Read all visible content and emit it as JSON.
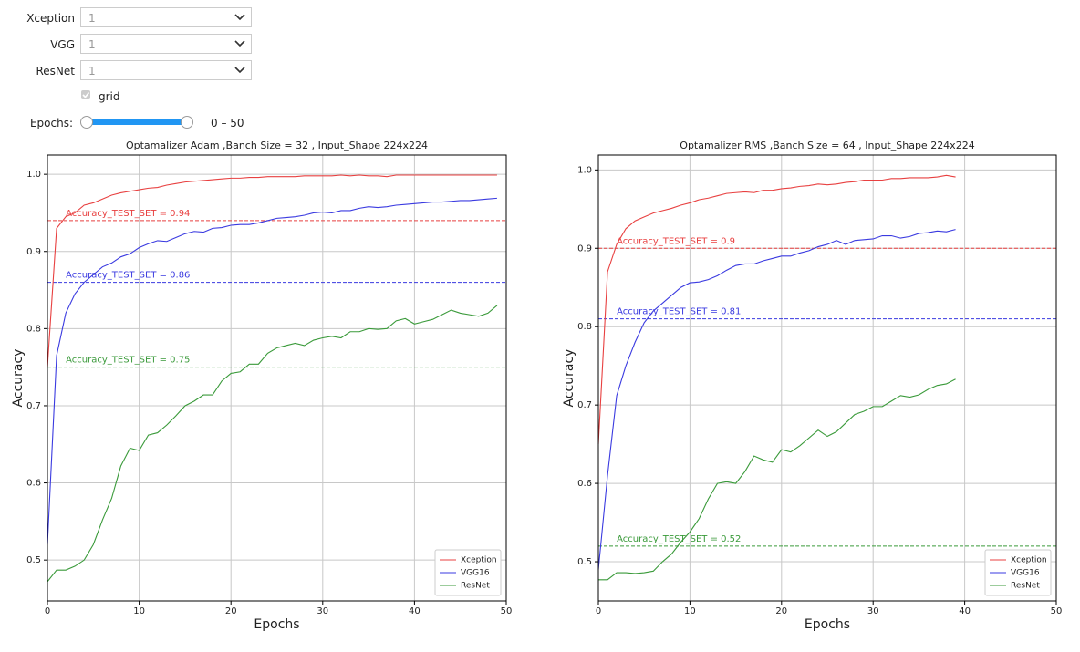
{
  "widgets": {
    "dropdowns": [
      {
        "label": "Xception",
        "value": "1"
      },
      {
        "label": "VGG",
        "value": "1"
      },
      {
        "label": "ResNet",
        "value": "1"
      }
    ],
    "checkbox": {
      "label": "grid"
    },
    "slider": {
      "label": "Epochs:",
      "readout": "0 – 50"
    }
  },
  "chart_data": [
    {
      "type": "line",
      "title": "Optamalizer Adam ,Banch Size = 32 , Input_Shape 224x224",
      "x_label": "Epochs",
      "y_label": "Accuracy",
      "x": [
        0,
        1,
        2,
        3,
        4,
        5,
        6,
        7,
        8,
        9,
        10,
        11,
        12,
        13,
        14,
        15,
        16,
        17,
        18,
        19,
        20,
        21,
        22,
        23,
        24,
        25,
        26,
        27,
        28,
        29,
        30,
        31,
        32,
        33,
        34,
        35,
        36,
        37,
        38,
        39,
        40,
        41,
        42,
        43,
        44,
        45,
        46,
        47,
        48,
        49
      ],
      "series": [
        {
          "name": "Xception",
          "color": "#e84040",
          "values": [
            0.75,
            0.93,
            0.945,
            0.95,
            0.96,
            0.963,
            0.968,
            0.973,
            0.976,
            0.978,
            0.98,
            0.982,
            0.983,
            0.986,
            0.988,
            0.99,
            0.991,
            0.992,
            0.993,
            0.994,
            0.995,
            0.995,
            0.996,
            0.996,
            0.997,
            0.997,
            0.997,
            0.997,
            0.998,
            0.998,
            0.998,
            0.998,
            0.999,
            0.998,
            0.999,
            0.998,
            0.998,
            0.997,
            0.999,
            0.999,
            0.999,
            0.999,
            0.999,
            0.999,
            0.999,
            0.999,
            0.999,
            0.999,
            0.999,
            0.999
          ]
        },
        {
          "name": "VGG16",
          "color": "#3a3ae0",
          "values": [
            0.52,
            0.765,
            0.82,
            0.845,
            0.86,
            0.87,
            0.88,
            0.885,
            0.893,
            0.897,
            0.905,
            0.91,
            0.914,
            0.913,
            0.918,
            0.923,
            0.926,
            0.925,
            0.93,
            0.931,
            0.934,
            0.935,
            0.935,
            0.937,
            0.94,
            0.943,
            0.944,
            0.945,
            0.947,
            0.95,
            0.951,
            0.95,
            0.953,
            0.953,
            0.956,
            0.958,
            0.957,
            0.958,
            0.96,
            0.961,
            0.962,
            0.963,
            0.964,
            0.964,
            0.965,
            0.966,
            0.966,
            0.967,
            0.968,
            0.969
          ]
        },
        {
          "name": "ResNet",
          "color": "#3a9a3a",
          "values": [
            0.472,
            0.487,
            0.487,
            0.492,
            0.5,
            0.52,
            0.552,
            0.58,
            0.622,
            0.645,
            0.642,
            0.662,
            0.665,
            0.675,
            0.687,
            0.7,
            0.706,
            0.714,
            0.714,
            0.732,
            0.742,
            0.744,
            0.754,
            0.754,
            0.768,
            0.775,
            0.778,
            0.781,
            0.778,
            0.785,
            0.788,
            0.79,
            0.788,
            0.796,
            0.796,
            0.8,
            0.799,
            0.8,
            0.81,
            0.813,
            0.806,
            0.809,
            0.812,
            0.818,
            0.824,
            0.82,
            0.818,
            0.816,
            0.82,
            0.83
          ]
        }
      ],
      "hlines": [
        {
          "value": 0.94,
          "label": "Accuracy_TEST_SET = 0.94",
          "color": "#e84040"
        },
        {
          "value": 0.86,
          "label": "Accuracy_TEST_SET = 0.86",
          "color": "#3a3ae0"
        },
        {
          "value": 0.75,
          "label": "Accuracy_TEST_SET = 0.75",
          "color": "#3a9a3a"
        }
      ],
      "xlim": [
        0,
        50
      ],
      "xticks": [
        0,
        10,
        20,
        30,
        40,
        50
      ],
      "ylim": [
        0.447,
        1.025
      ],
      "yticks": [
        0.5,
        0.6,
        0.7,
        0.8,
        0.9,
        {
          "value": 1,
          "label": "1.0"
        }
      ],
      "grid": true,
      "legend": "lower right"
    },
    {
      "type": "line",
      "title": "Optamalizer RMS  ,Banch Size = 64 , Input_Shape 224x224",
      "x_label": "Epochs",
      "y_label": "Accuracy",
      "x": [
        0,
        1,
        2,
        3,
        4,
        5,
        6,
        7,
        8,
        9,
        10,
        11,
        12,
        13,
        14,
        15,
        16,
        17,
        18,
        19,
        20,
        21,
        22,
        23,
        24,
        25,
        26,
        27,
        28,
        29,
        30,
        31,
        32,
        33,
        34,
        35,
        36,
        37,
        38,
        39
      ],
      "series": [
        {
          "name": "Xception",
          "color": "#e84040",
          "values": [
            0.65,
            0.87,
            0.905,
            0.925,
            0.935,
            0.94,
            0.945,
            0.948,
            0.951,
            0.955,
            0.958,
            0.962,
            0.964,
            0.967,
            0.97,
            0.971,
            0.972,
            0.971,
            0.974,
            0.974,
            0.976,
            0.977,
            0.979,
            0.98,
            0.982,
            0.981,
            0.982,
            0.984,
            0.985,
            0.987,
            0.987,
            0.987,
            0.989,
            0.989,
            0.99,
            0.99,
            0.99,
            0.991,
            0.993,
            0.991
          ]
        },
        {
          "name": "VGG16",
          "color": "#3a3ae0",
          "values": [
            0.49,
            0.61,
            0.712,
            0.75,
            0.78,
            0.805,
            0.82,
            0.83,
            0.84,
            0.85,
            0.856,
            0.857,
            0.86,
            0.865,
            0.872,
            0.878,
            0.88,
            0.88,
            0.884,
            0.887,
            0.89,
            0.89,
            0.894,
            0.897,
            0.902,
            0.905,
            0.91,
            0.905,
            0.91,
            0.911,
            0.912,
            0.916,
            0.916,
            0.913,
            0.915,
            0.919,
            0.92,
            0.922,
            0.921,
            0.924
          ]
        },
        {
          "name": "ResNet",
          "color": "#3a9a3a",
          "values": [
            0.477,
            0.477,
            0.486,
            0.486,
            0.485,
            0.486,
            0.488,
            0.5,
            0.51,
            0.525,
            0.538,
            0.555,
            0.58,
            0.6,
            0.602,
            0.6,
            0.615,
            0.635,
            0.63,
            0.627,
            0.643,
            0.64,
            0.648,
            0.658,
            0.668,
            0.66,
            0.666,
            0.677,
            0.688,
            0.692,
            0.698,
            0.698,
            0.705,
            0.712,
            0.71,
            0.713,
            0.72,
            0.725,
            0.727,
            0.733
          ]
        }
      ],
      "hlines": [
        {
          "value": 0.9,
          "label": "Accuracy_TEST_SET = 0.9",
          "color": "#e84040"
        },
        {
          "value": 0.81,
          "label": "Accuracy_TEST_SET = 0.81",
          "color": "#3a3ae0"
        },
        {
          "value": 0.52,
          "label": "Accuracy_TEST_SET = 0.52",
          "color": "#3a9a3a"
        }
      ],
      "xlim": [
        0,
        50
      ],
      "xticks": [
        0,
        10,
        20,
        30,
        40,
        50
      ],
      "ylim": [
        0.45,
        1.019
      ],
      "yticks": [
        0.5,
        0.6,
        0.7,
        0.8,
        0.9,
        {
          "value": 1,
          "label": "1.0"
        }
      ],
      "grid": true,
      "legend": "lower right"
    }
  ]
}
